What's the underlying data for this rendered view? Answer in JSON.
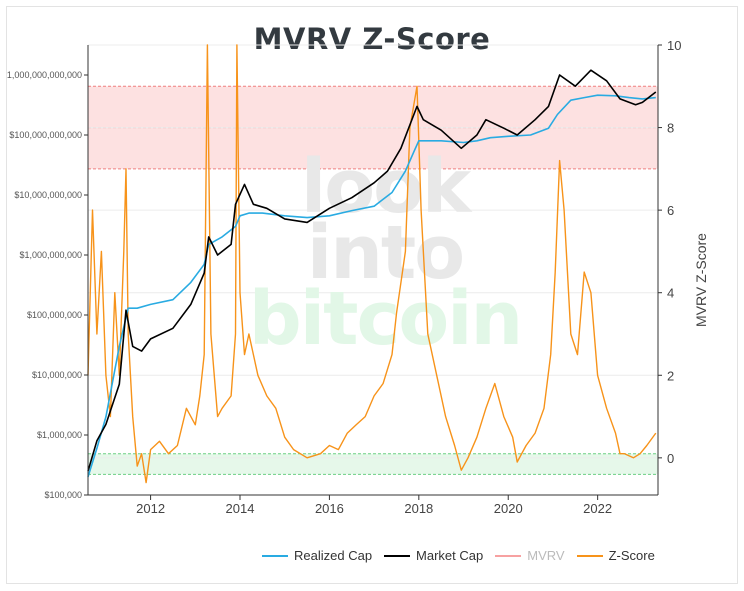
{
  "chart_data": {
    "type": "line",
    "title": "MVRV Z-Score",
    "y_left_scale": "log",
    "y_left_ticks": [
      {
        "value": 100000,
        "label": "$100,000"
      },
      {
        "value": 1000000,
        "label": "$1,000,000"
      },
      {
        "value": 10000000,
        "label": "$10,000,000"
      },
      {
        "value": 100000000,
        "label": "$100,000,000"
      },
      {
        "value": 1000000000,
        "label": "$1,000,000,000"
      },
      {
        "value": 10000000000,
        "label": "$10,000,000,000"
      },
      {
        "value": 100000000000,
        "label": "$100,000,000,000"
      },
      {
        "value": 1000000000000,
        "label": "1,000,000,000,000"
      }
    ],
    "y_right_label": "MVRV Z-Score",
    "y_right_ticks": [
      0,
      2,
      4,
      6,
      8,
      10
    ],
    "x_ticks": [
      "2012",
      "2014",
      "2016",
      "2018",
      "2020",
      "2022"
    ],
    "xlim": [
      2010.6,
      2023.35
    ],
    "ylim_right": [
      -0.9,
      10
    ],
    "bands": {
      "red": {
        "color": "#fde1e1",
        "from": 7,
        "to": 9
      },
      "green": {
        "color": "#e6f8ea",
        "from": -0.4,
        "to": 0.1
      }
    },
    "series": [
      {
        "name": "Realized Cap",
        "color": "#29abe2",
        "axis": "left",
        "x": [
          2010.6,
          2010.8,
          2011.0,
          2011.3,
          2011.5,
          2011.7,
          2012.0,
          2012.5,
          2012.9,
          2013.2,
          2013.3,
          2013.6,
          2013.9,
          2014.0,
          2014.2,
          2014.5,
          2015.0,
          2015.5,
          2016.0,
          2016.5,
          2017.0,
          2017.4,
          2017.7,
          2017.9,
          2018.0,
          2018.5,
          2019.0,
          2019.3,
          2019.6,
          2020.0,
          2020.5,
          2020.9,
          2021.1,
          2021.4,
          2021.7,
          2022.0,
          2022.4,
          2022.7,
          2023.0,
          2023.3
        ],
        "y": [
          200000,
          600000,
          2000000,
          30000000,
          130000000,
          130000000,
          150000000,
          180000000,
          350000000,
          700000000,
          1500000000,
          2000000000,
          3000000000,
          4500000000,
          5000000000,
          5000000000,
          4500000000,
          4200000000,
          4500000000,
          5500000000,
          6500000000,
          11000000000,
          25000000000,
          55000000000,
          80000000000,
          80000000000,
          75000000000,
          80000000000,
          90000000000,
          95000000000,
          100000000000,
          130000000000,
          220000000000,
          380000000000,
          420000000000,
          460000000000,
          450000000000,
          420000000000,
          400000000000,
          420000000000
        ]
      },
      {
        "name": "Market Cap",
        "color": "#000000",
        "axis": "left",
        "x": [
          2010.6,
          2010.8,
          2011.0,
          2011.3,
          2011.45,
          2011.6,
          2011.8,
          2012.0,
          2012.5,
          2012.9,
          2013.2,
          2013.3,
          2013.5,
          2013.8,
          2013.9,
          2014.1,
          2014.3,
          2014.6,
          2015.0,
          2015.5,
          2016.0,
          2016.5,
          2017.0,
          2017.3,
          2017.6,
          2017.96,
          2018.1,
          2018.5,
          2018.95,
          2019.3,
          2019.5,
          2019.9,
          2020.2,
          2020.6,
          2020.9,
          2021.15,
          2021.5,
          2021.85,
          2022.2,
          2022.5,
          2022.85,
          2023.0,
          2023.3
        ],
        "y": [
          250000,
          800000,
          1500000,
          7000000,
          120000000,
          30000000,
          25000000,
          40000000,
          60000000,
          150000000,
          500000000,
          2000000000,
          1000000000,
          1500000000,
          7000000000,
          15000000000,
          7000000000,
          6000000000,
          4000000000,
          3500000000,
          6000000000,
          9000000000,
          16000000000,
          25000000000,
          60000000000,
          300000000000,
          180000000000,
          120000000000,
          60000000000,
          100000000000,
          180000000000,
          130000000000,
          100000000000,
          180000000000,
          300000000000,
          1000000000000,
          650000000000,
          1200000000000,
          800000000000,
          400000000000,
          320000000000,
          350000000000,
          520000000000
        ]
      },
      {
        "name": "MVRV",
        "color": "#f7a1a1",
        "axis": "right",
        "hidden": true,
        "x": [],
        "y": []
      },
      {
        "name": "Z-Score",
        "color": "#f7931a",
        "axis": "right",
        "x": [
          2010.6,
          2010.7,
          2010.8,
          2010.9,
          2011.0,
          2011.1,
          2011.2,
          2011.3,
          2011.4,
          2011.45,
          2011.5,
          2011.6,
          2011.7,
          2011.8,
          2011.9,
          2012.0,
          2012.2,
          2012.4,
          2012.6,
          2012.8,
          2013.0,
          2013.1,
          2013.2,
          2013.27,
          2013.35,
          2013.5,
          2013.6,
          2013.8,
          2013.9,
          2013.93,
          2014.0,
          2014.1,
          2014.2,
          2014.4,
          2014.6,
          2014.8,
          2015.0,
          2015.2,
          2015.5,
          2015.8,
          2016.0,
          2016.2,
          2016.4,
          2016.6,
          2016.8,
          2017.0,
          2017.2,
          2017.4,
          2017.5,
          2017.7,
          2017.8,
          2017.96,
          2018.05,
          2018.2,
          2018.4,
          2018.6,
          2018.8,
          2018.95,
          2019.1,
          2019.3,
          2019.5,
          2019.7,
          2019.9,
          2020.1,
          2020.2,
          2020.4,
          2020.6,
          2020.8,
          2020.95,
          2021.05,
          2021.15,
          2021.25,
          2021.4,
          2021.55,
          2021.7,
          2021.85,
          2022.0,
          2022.2,
          2022.4,
          2022.5,
          2022.6,
          2022.8,
          2022.95,
          2023.1,
          2023.3
        ],
        "y": [
          2,
          6,
          3,
          5,
          2,
          1,
          4,
          2,
          5,
          7,
          3,
          1,
          -0.2,
          0.1,
          -0.6,
          0.2,
          0.4,
          0.1,
          0.3,
          1.2,
          0.8,
          1.5,
          2.5,
          10,
          3,
          1,
          1.2,
          1.5,
          3,
          10,
          4,
          2.5,
          3,
          2,
          1.5,
          1.2,
          0.5,
          0.2,
          0,
          0.1,
          0.3,
          0.2,
          0.6,
          0.8,
          1,
          1.5,
          1.8,
          2.5,
          3.5,
          5,
          8,
          9,
          6,
          3,
          2,
          1,
          0.3,
          -0.3,
          0,
          0.5,
          1.2,
          1.8,
          1,
          0.5,
          -0.1,
          0.3,
          0.6,
          1.2,
          2.5,
          4.5,
          7.2,
          6,
          3,
          2.5,
          4.5,
          4,
          2,
          1.2,
          0.6,
          0.1,
          0.1,
          0,
          0.1,
          0.3,
          0.6
        ]
      }
    ],
    "watermark": [
      "look",
      "into",
      "bitcoin"
    ],
    "legend_position": "bottom"
  }
}
